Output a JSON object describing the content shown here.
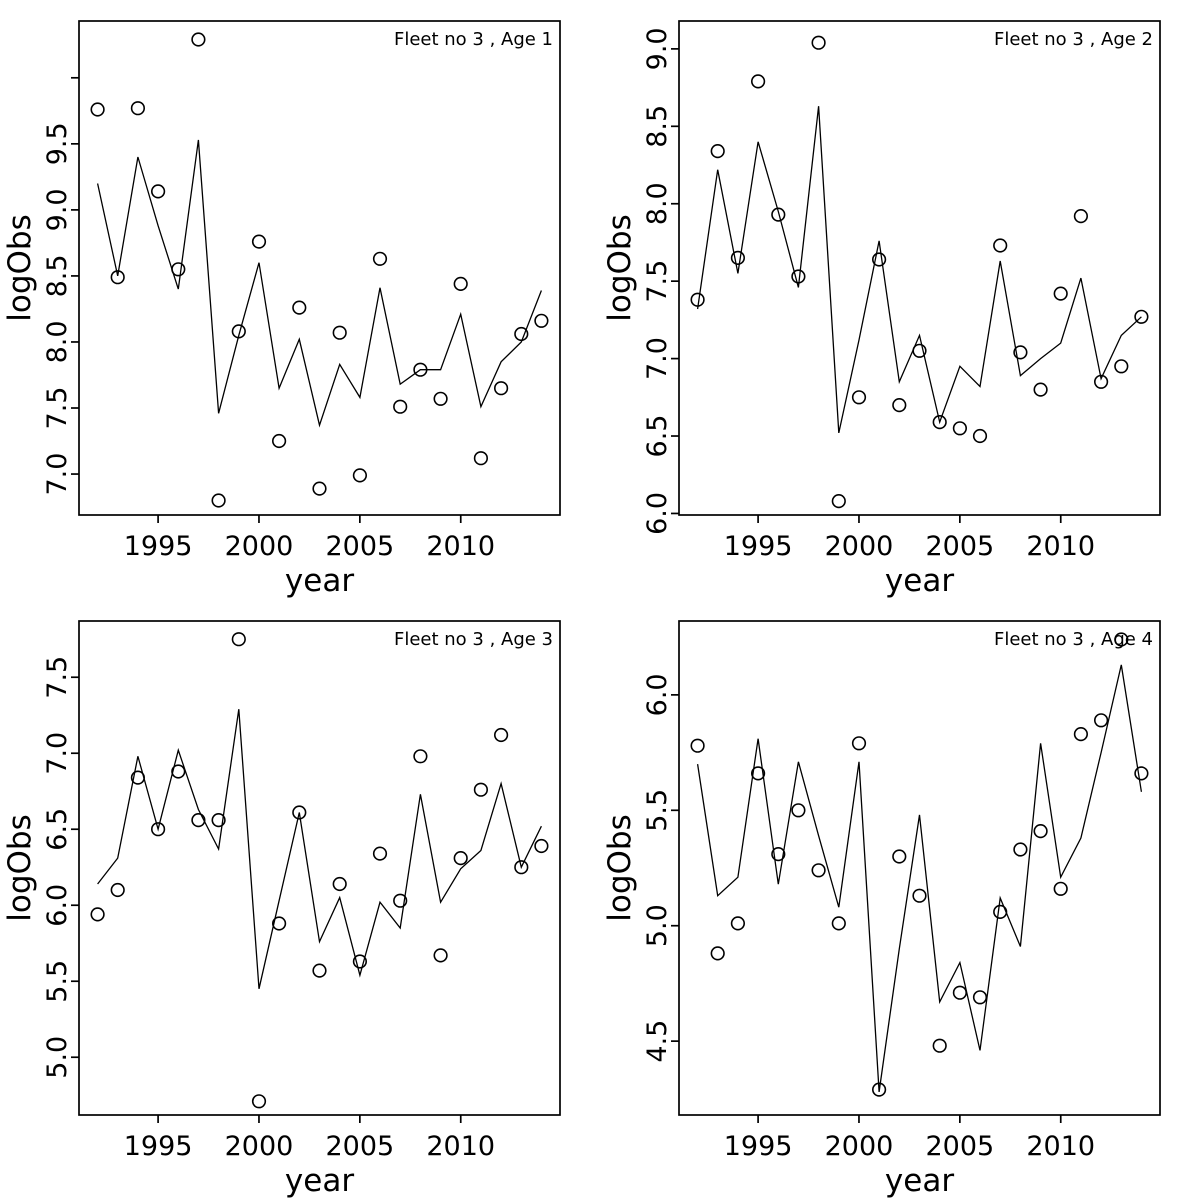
{
  "page": {
    "background": "#ffffff",
    "foreground": "#000000"
  },
  "chart_data": [
    {
      "type": "line",
      "title": "Fleet no 3 , Age 1",
      "xlabel": "year",
      "ylabel": "logObs",
      "x": [
        1992,
        1993,
        1994,
        1995,
        1996,
        1997,
        1998,
        1999,
        2000,
        2001,
        2002,
        2003,
        2004,
        2005,
        2006,
        2007,
        2008,
        2009,
        2010,
        2011,
        2012,
        2013,
        2014
      ],
      "series": [
        {
          "name": "fitted-line",
          "style": "line",
          "color": "#000000",
          "values": [
            9.2,
            8.5,
            9.4,
            8.88,
            8.4,
            9.53,
            7.46,
            8.05,
            8.6,
            7.65,
            8.02,
            7.37,
            7.83,
            7.58,
            8.41,
            7.68,
            7.79,
            7.79,
            8.21,
            7.51,
            7.85,
            8.0,
            8.39
          ]
        },
        {
          "name": "observed-points",
          "style": "open-circles",
          "color": "#000000",
          "values": [
            9.76,
            8.49,
            9.77,
            9.14,
            8.55,
            10.29,
            6.8,
            8.08,
            8.76,
            7.25,
            8.26,
            6.89,
            8.07,
            6.99,
            8.63,
            7.51,
            7.79,
            7.57,
            8.44,
            7.12,
            7.65,
            8.06,
            8.16
          ]
        }
      ],
      "xlim": [
        1991.08,
        2014.92
      ],
      "ylim": [
        6.69,
        10.43
      ],
      "x_ticks": [
        1995,
        2000,
        2005,
        2010
      ],
      "y_ticks": [
        {
          "v": 7.0,
          "label": "7.0"
        },
        {
          "v": 7.5,
          "label": "7.5"
        },
        {
          "v": 8.0,
          "label": "8.0"
        },
        {
          "v": 8.5,
          "label": "8.5"
        },
        {
          "v": 9.0,
          "label": "9.0"
        },
        {
          "v": 9.5,
          "label": "9.5"
        },
        {
          "v": 10.0,
          "label": ""
        }
      ],
      "grid": false,
      "legend": "none"
    },
    {
      "type": "line",
      "title": "Fleet no 3 , Age 2",
      "xlabel": "year",
      "ylabel": "logObs",
      "x": [
        1992,
        1993,
        1994,
        1995,
        1996,
        1997,
        1998,
        1999,
        2000,
        2001,
        2002,
        2003,
        2004,
        2005,
        2006,
        2007,
        2008,
        2009,
        2010,
        2011,
        2012,
        2013,
        2014
      ],
      "series": [
        {
          "name": "fitted-line",
          "style": "line",
          "color": "#000000",
          "values": [
            7.32,
            8.22,
            7.55,
            8.4,
            7.95,
            7.46,
            8.63,
            6.52,
            7.12,
            7.76,
            6.85,
            7.15,
            6.59,
            6.95,
            6.82,
            7.63,
            6.89,
            7.0,
            7.1,
            7.52,
            6.87,
            7.15,
            7.27
          ]
        },
        {
          "name": "observed-points",
          "style": "open-circles",
          "color": "#000000",
          "values": [
            7.38,
            8.34,
            7.65,
            8.79,
            7.93,
            7.53,
            9.04,
            6.08,
            6.75,
            7.64,
            6.7,
            7.05,
            6.59,
            6.55,
            6.5,
            7.73,
            7.04,
            6.8,
            7.42,
            7.92,
            6.85,
            6.95,
            7.27
          ]
        }
      ],
      "xlim": [
        1991.08,
        2014.92
      ],
      "ylim": [
        5.99,
        9.18
      ],
      "x_ticks": [
        1995,
        2000,
        2005,
        2010
      ],
      "y_ticks": [
        {
          "v": 6.0,
          "label": "6.0"
        },
        {
          "v": 6.5,
          "label": "6.5"
        },
        {
          "v": 7.0,
          "label": "7.0"
        },
        {
          "v": 7.5,
          "label": "7.5"
        },
        {
          "v": 8.0,
          "label": "8.0"
        },
        {
          "v": 8.5,
          "label": "8.5"
        },
        {
          "v": 9.0,
          "label": "9.0"
        }
      ],
      "grid": false,
      "legend": "none"
    },
    {
      "type": "line",
      "title": "Fleet no 3 , Age 3",
      "xlabel": "year",
      "ylabel": "logObs",
      "x": [
        1992,
        1993,
        1994,
        1995,
        1996,
        1997,
        1998,
        1999,
        2000,
        2001,
        2002,
        2003,
        2004,
        2005,
        2006,
        2007,
        2008,
        2009,
        2010,
        2011,
        2012,
        2013,
        2014
      ],
      "series": [
        {
          "name": "fitted-line",
          "style": "line",
          "color": "#000000",
          "values": [
            6.14,
            6.31,
            6.98,
            6.5,
            7.02,
            6.63,
            6.37,
            7.29,
            5.45,
            6.03,
            6.61,
            5.76,
            6.05,
            5.54,
            6.02,
            5.85,
            6.73,
            6.02,
            6.24,
            6.36,
            6.8,
            6.25,
            6.52
          ]
        },
        {
          "name": "observed-points",
          "style": "open-circles",
          "color": "#000000",
          "values": [
            5.94,
            6.1,
            6.84,
            6.5,
            6.88,
            6.56,
            6.56,
            7.75,
            4.71,
            5.88,
            6.61,
            5.57,
            6.14,
            5.63,
            6.34,
            6.03,
            6.98,
            5.67,
            6.31,
            6.76,
            7.12,
            6.25,
            6.39
          ]
        }
      ],
      "xlim": [
        1991.08,
        2014.92
      ],
      "ylim": [
        4.62,
        7.87
      ],
      "x_ticks": [
        1995,
        2000,
        2005,
        2010
      ],
      "y_ticks": [
        {
          "v": 5.0,
          "label": "5.0"
        },
        {
          "v": 5.5,
          "label": "5.5"
        },
        {
          "v": 6.0,
          "label": "6.0"
        },
        {
          "v": 6.5,
          "label": "6.5"
        },
        {
          "v": 7.0,
          "label": "7.0"
        },
        {
          "v": 7.5,
          "label": "7.5"
        }
      ],
      "grid": false,
      "legend": "none"
    },
    {
      "type": "line",
      "title": "Fleet no 3 , Age 4",
      "xlabel": "year",
      "ylabel": "logObs",
      "x": [
        1992,
        1993,
        1994,
        1995,
        1996,
        1997,
        1998,
        1999,
        2000,
        2001,
        2002,
        2003,
        2004,
        2005,
        2006,
        2007,
        2008,
        2009,
        2010,
        2011,
        2012,
        2013,
        2014
      ],
      "series": [
        {
          "name": "fitted-line",
          "style": "line",
          "color": "#000000",
          "values": [
            5.7,
            5.13,
            5.21,
            5.81,
            5.18,
            5.71,
            5.39,
            5.08,
            5.71,
            4.28,
            4.9,
            5.48,
            4.67,
            4.84,
            4.46,
            5.12,
            4.91,
            5.79,
            5.21,
            5.38,
            5.75,
            6.13,
            5.58
          ]
        },
        {
          "name": "observed-points",
          "style": "open-circles",
          "color": "#000000",
          "values": [
            5.78,
            4.88,
            5.01,
            5.66,
            5.31,
            5.5,
            5.24,
            5.01,
            5.79,
            4.29,
            5.3,
            5.13,
            4.48,
            4.71,
            4.69,
            5.06,
            5.33,
            5.41,
            5.16,
            5.83,
            5.89,
            6.24,
            5.66
          ]
        }
      ],
      "xlim": [
        1991.08,
        2014.92
      ],
      "ylim": [
        4.18,
        6.32
      ],
      "x_ticks": [
        1995,
        2000,
        2005,
        2010
      ],
      "y_ticks": [
        {
          "v": 4.5,
          "label": "4.5"
        },
        {
          "v": 5.0,
          "label": "5.0"
        },
        {
          "v": 5.5,
          "label": "5.5"
        },
        {
          "v": 6.0,
          "label": "6.0"
        }
      ],
      "grid": false,
      "legend": "none"
    }
  ]
}
